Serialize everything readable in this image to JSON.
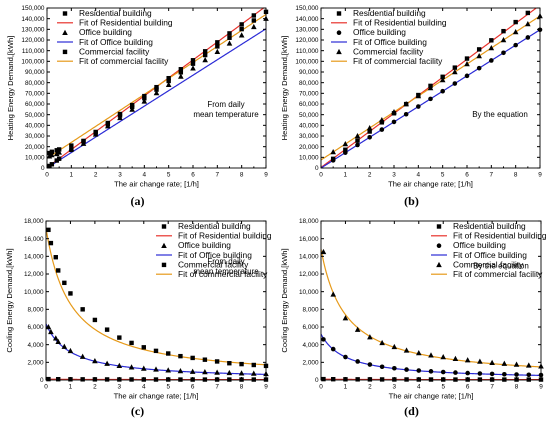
{
  "colors": {
    "residential_fit": "#e8322c",
    "office_fit": "#2b2bd6",
    "commercial_fit": "#e69a1a",
    "marker": "#000000"
  },
  "chart_data": [
    {
      "id": "a",
      "panel_label": "(a)",
      "type": "scatter",
      "xlabel": "The air change rate; [1/h]",
      "ylabel": "Heating Energy Demand,[kWh]",
      "xlim": [
        0,
        9
      ],
      "ylim": [
        0,
        150000
      ],
      "xticks": [
        0,
        1,
        2,
        3,
        4,
        5,
        6,
        7,
        8,
        9
      ],
      "yticks": [
        0,
        10000,
        20000,
        30000,
        40000,
        50000,
        60000,
        70000,
        80000,
        90000,
        100000,
        110000,
        120000,
        130000,
        140000,
        150000
      ],
      "ytick_labels": [
        "0",
        "10,000",
        "20,000",
        "30,000",
        "40,000",
        "50,000",
        "60,000",
        "70,000",
        "80,000",
        "90,000",
        "100,000",
        "110,000",
        "120,000",
        "130,000",
        "140,000",
        "150,000"
      ],
      "legend_position": "top-left",
      "annotation": [
        "From daily",
        "mean temperature"
      ],
      "series": [
        {
          "name": "Residential building",
          "kind": "points",
          "marker": "square",
          "x": [
            0.1,
            0.2,
            0.4,
            0.5,
            1,
            1.5,
            2,
            2.5,
            3,
            3.5,
            4,
            4.5,
            5,
            5.5,
            6,
            6.5,
            7,
            7.5,
            8,
            8.5,
            9
          ],
          "y": [
            1900,
            3500,
            7000,
            8700,
            17000,
            25400,
            33800,
            42200,
            50600,
            59000,
            67400,
            75800,
            84200,
            92600,
            101000,
            109400,
            117800,
            126200,
            134600,
            143000,
            151400
          ]
        },
        {
          "name": "Fit of Residential building",
          "kind": "line",
          "color": "residential_fit",
          "fit": {
            "form": "linear",
            "a": 500,
            "b": 16800
          }
        },
        {
          "name": "Office building",
          "kind": "points",
          "marker": "triangle",
          "x": [
            0.1,
            0.2,
            0.4,
            0.5,
            1,
            1.5,
            2,
            2.5,
            3,
            3.5,
            4,
            4.5,
            5,
            5.5,
            6,
            6.5,
            7,
            7.5,
            8,
            8.5,
            9
          ],
          "y": [
            11000,
            12200,
            13200,
            14700,
            18000,
            22800,
            31500,
            39300,
            47000,
            54800,
            62500,
            70300,
            78000,
            85800,
            93500,
            101300,
            109000,
            116800,
            124500,
            132300,
            140000
          ]
        },
        {
          "name": "Fit of Office building",
          "kind": "line",
          "color": "office_fit",
          "fit": {
            "form": "linear",
            "a": 0,
            "b": 14500
          }
        },
        {
          "name": "Commercial facility",
          "kind": "points",
          "marker": "square",
          "x": [
            0.1,
            0.2,
            0.4,
            0.5,
            1,
            1.5,
            2,
            2.5,
            3,
            3.5,
            4,
            4.5,
            5,
            5.5,
            6,
            6.5,
            7,
            7.5,
            8,
            8.5,
            9
          ],
          "y": [
            14000,
            15200,
            16600,
            17400,
            21000,
            25000,
            32800,
            41100,
            49200,
            57300,
            65400,
            73500,
            81600,
            89700,
            97800,
            105900,
            114000,
            122100,
            130200,
            138300,
            146400
          ]
        },
        {
          "name": "Fit of commercial facility",
          "kind": "line",
          "color": "commercial_fit",
          "fit": {
            "form": "linear",
            "a": 9000,
            "b": 15000
          }
        }
      ]
    },
    {
      "id": "b",
      "panel_label": "(b)",
      "type": "scatter",
      "xlabel": "The air change rate; [1/h]",
      "ylabel": "Heating Energy Demand,[kWh]",
      "xlim": [
        0,
        9
      ],
      "ylim": [
        0,
        150000
      ],
      "xticks": [
        0,
        1,
        2,
        3,
        4,
        5,
        6,
        7,
        8,
        9
      ],
      "yticks": [
        0,
        10000,
        20000,
        30000,
        40000,
        50000,
        60000,
        70000,
        80000,
        90000,
        100000,
        110000,
        120000,
        130000,
        140000,
        150000
      ],
      "ytick_labels": [
        "0",
        "10,000",
        "20,000",
        "30,000",
        "40,000",
        "50,000",
        "60,000",
        "70,000",
        "80,000",
        "90,000",
        "100,000",
        "110,000",
        "120,000",
        "130,000",
        "140,000",
        "150,000"
      ],
      "legend_position": "top-left",
      "annotation": [
        "By the equation"
      ],
      "series": [
        {
          "name": "Residential building",
          "kind": "points",
          "marker": "square",
          "x": [
            0.5,
            1,
            1.5,
            2,
            2.5,
            3,
            3.5,
            4,
            4.5,
            5,
            5.5,
            6,
            6.5,
            7,
            7.5,
            8,
            8.5,
            9
          ],
          "y": [
            8600,
            17100,
            25700,
            34200,
            42800,
            51300,
            59900,
            68400,
            77000,
            85500,
            94100,
            102600,
            111200,
            119700,
            128300,
            136800,
            145400,
            153900
          ]
        },
        {
          "name": "Fit of Residential building",
          "kind": "line",
          "color": "residential_fit",
          "fit": {
            "form": "linear",
            "a": 500,
            "b": 16900
          }
        },
        {
          "name": "Office building",
          "kind": "points",
          "marker": "circle",
          "x": [
            0.5,
            1,
            1.5,
            2,
            2.5,
            3,
            3.5,
            4,
            4.5,
            5,
            5.5,
            6,
            6.5,
            7,
            7.5,
            8,
            8.5,
            9
          ],
          "y": [
            7200,
            14400,
            21600,
            28800,
            36000,
            43200,
            50400,
            57600,
            64800,
            72000,
            79200,
            86400,
            93600,
            100800,
            108000,
            115200,
            122400,
            129600
          ]
        },
        {
          "name": "Fit of Office building",
          "kind": "line",
          "color": "office_fit",
          "fit": {
            "form": "linear",
            "a": 0,
            "b": 14400
          }
        },
        {
          "name": "Commercial facility",
          "kind": "points",
          "marker": "triangle",
          "x": [
            0.5,
            1,
            1.5,
            2,
            2.5,
            3,
            3.5,
            4,
            4.5,
            5,
            5.5,
            6,
            6.5,
            7,
            7.5,
            8,
            8.5,
            9
          ],
          "y": [
            15000,
            22500,
            30000,
            37500,
            45000,
            52500,
            60000,
            67500,
            75000,
            82500,
            90000,
            97500,
            105000,
            112500,
            120000,
            127500,
            135000,
            142500
          ]
        },
        {
          "name": "Fit of commercial facility",
          "kind": "line",
          "color": "commercial_fit",
          "fit": {
            "form": "linear",
            "a": 7500,
            "b": 15000
          }
        }
      ]
    },
    {
      "id": "c",
      "panel_label": "(c)",
      "type": "scatter",
      "xlabel": "The air change rate; [1/h]",
      "ylabel": "Cooling Energy Demand,[kWh]",
      "xlim": [
        0,
        9
      ],
      "ylim": [
        0,
        18000
      ],
      "xticks": [
        0,
        1,
        2,
        3,
        4,
        5,
        6,
        7,
        8,
        9
      ],
      "yticks": [
        0,
        2000,
        4000,
        6000,
        8000,
        10000,
        12000,
        14000,
        16000,
        18000
      ],
      "ytick_labels": [
        "0",
        "2,000",
        "4,000",
        "6,000",
        "8,000",
        "10,000",
        "12,000",
        "14,000",
        "16,000",
        "18,000"
      ],
      "legend_position": "top-right",
      "annotation": [
        "From daily",
        "mean temperature"
      ],
      "series": [
        {
          "name": "Residential building",
          "kind": "points",
          "marker": "square",
          "x": [
            0.1,
            0.5,
            1,
            1.5,
            2,
            2.5,
            3,
            3.5,
            4,
            4.5,
            5,
            5.5,
            6,
            6.5,
            7,
            7.5,
            8,
            8.5,
            9
          ],
          "y": [
            100,
            90,
            80,
            75,
            70,
            65,
            60,
            60,
            55,
            55,
            55,
            50,
            50,
            50,
            50,
            50,
            50,
            50,
            50
          ]
        },
        {
          "name": "Fit of Residential building",
          "kind": "line",
          "color": "residential_fit",
          "fit": {
            "form": "hyperbolic",
            "c": 40,
            "k": 60,
            "t": 1
          }
        },
        {
          "name": "Office building",
          "kind": "points",
          "marker": "triangle",
          "x": [
            0.1,
            0.2,
            0.4,
            0.5,
            0.75,
            1,
            1.5,
            2,
            2.5,
            3,
            3.5,
            4,
            4.5,
            5,
            5.5,
            6,
            6.5,
            7,
            7.5,
            8,
            8.5,
            9
          ],
          "y": [
            6000,
            5450,
            4730,
            4330,
            3780,
            3300,
            2650,
            2150,
            1850,
            1620,
            1450,
            1300,
            1200,
            1100,
            1020,
            950,
            900,
            850,
            800,
            760,
            730,
            700
          ]
        },
        {
          "name": "Fit of Office building",
          "kind": "line",
          "color": "office_fit",
          "fit": {
            "form": "hyperbolic",
            "c": 0,
            "k": 6350,
            "t": 1
          }
        },
        {
          "name": "Commercial facility",
          "kind": "points",
          "marker": "square",
          "x": [
            0.1,
            0.2,
            0.4,
            0.5,
            0.75,
            1,
            1.5,
            2,
            2.5,
            3,
            3.5,
            4,
            4.5,
            5,
            5.5,
            6,
            6.5,
            7,
            7.5,
            8,
            8.5,
            9
          ],
          "y": [
            17000,
            15500,
            13900,
            12400,
            11000,
            9800,
            8000,
            6800,
            5700,
            4800,
            4200,
            3700,
            3300,
            3000,
            2700,
            2500,
            2300,
            2100,
            1900,
            1800,
            1700,
            1600
          ]
        },
        {
          "name": "Fit of commercial facility",
          "kind": "line",
          "color": "commercial_fit",
          "fit": {
            "form": "hyperbolic",
            "c": 0,
            "k": 17200,
            "t": 1
          }
        }
      ]
    },
    {
      "id": "d",
      "panel_label": "(d)",
      "type": "scatter",
      "xlabel": "The air change rate; [1/h]",
      "ylabel": "Cooling Energy Demand,[kWh]",
      "xlim": [
        0,
        9
      ],
      "ylim": [
        0,
        18000
      ],
      "xticks": [
        0,
        1,
        2,
        3,
        4,
        5,
        6,
        7,
        8,
        9
      ],
      "yticks": [
        0,
        2000,
        4000,
        6000,
        8000,
        10000,
        12000,
        14000,
        16000,
        18000
      ],
      "ytick_labels": [
        "0",
        "2,000",
        "4,000",
        "6,000",
        "8,000",
        "10,000",
        "12,000",
        "14,000",
        "16,000",
        "18,000"
      ],
      "legend_position": "top-right",
      "annotation": [
        "By the equation"
      ],
      "series": [
        {
          "name": "Residential building",
          "kind": "points",
          "marker": "square",
          "x": [
            0.1,
            0.5,
            1,
            1.5,
            2,
            2.5,
            3,
            3.5,
            4,
            4.5,
            5,
            5.5,
            6,
            6.5,
            7,
            7.5,
            8,
            8.5,
            9
          ],
          "y": [
            100,
            90,
            80,
            75,
            70,
            65,
            60,
            60,
            55,
            55,
            55,
            50,
            50,
            50,
            50,
            50,
            50,
            50,
            50
          ]
        },
        {
          "name": "Fit of Residential building",
          "kind": "line",
          "color": "residential_fit",
          "fit": {
            "form": "hyperbolic",
            "c": 40,
            "k": 60,
            "t": 1
          }
        },
        {
          "name": "Office building",
          "kind": "points",
          "marker": "circle",
          "x": [
            0.1,
            0.5,
            1,
            1.5,
            2,
            2.5,
            3,
            3.5,
            4,
            4.5,
            5,
            5.5,
            6,
            6.5,
            7,
            7.5,
            8,
            8.5,
            9
          ],
          "y": [
            4600,
            3500,
            2600,
            2100,
            1750,
            1500,
            1330,
            1180,
            1070,
            980,
            900,
            840,
            780,
            730,
            690,
            650,
            620,
            590,
            560
          ]
        },
        {
          "name": "Fit of Office building",
          "kind": "line",
          "color": "office_fit",
          "fit": {
            "form": "hyperbolic",
            "c": 0,
            "k": 5200,
            "t": 1
          }
        },
        {
          "name": "Commercial facility",
          "kind": "points",
          "marker": "triangle",
          "x": [
            0.1,
            0.5,
            1,
            1.5,
            2,
            2.5,
            3,
            3.5,
            4,
            4.5,
            5,
            5.5,
            6,
            6.5,
            7,
            7.5,
            8,
            8.5,
            9
          ],
          "y": [
            14500,
            9700,
            7000,
            5700,
            4850,
            4200,
            3750,
            3350,
            3050,
            2800,
            2600,
            2400,
            2250,
            2100,
            1950,
            1850,
            1750,
            1650,
            1550
          ]
        },
        {
          "name": "Fit of commercial facility",
          "kind": "line",
          "color": "commercial_fit",
          "fit": {
            "form": "hyperbolic",
            "c": 0,
            "k": 14800,
            "t": 1
          }
        }
      ]
    }
  ]
}
